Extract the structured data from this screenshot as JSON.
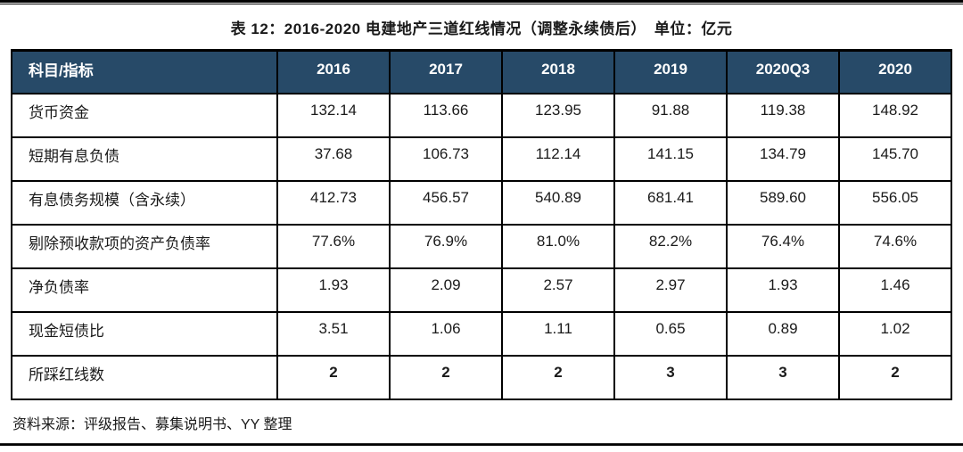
{
  "title": "表 12：2016-2020 电建地产三道红线情况（调整永续债后）　单位：亿元",
  "source_note": "资料来源：评级报告、募集说明书、YY 整理",
  "colors": {
    "header_bg": "#274A68",
    "header_text": "#FFFFFF",
    "pink": "#E5AEAF",
    "green": "#DDE6C5",
    "orange": "#E8730D",
    "red": "#FE0000",
    "plain": "#FFFFFF",
    "border": "#000000",
    "text": "#1A1A1A"
  },
  "table": {
    "columns": [
      "科目/指标",
      "2016",
      "2017",
      "2018",
      "2019",
      "2020Q3",
      "2020"
    ],
    "rows": [
      {
        "label": "货币资金",
        "values": [
          "132.14",
          "113.66",
          "123.95",
          "91.88",
          "119.38",
          "148.92"
        ],
        "styles": [
          "plain",
          "plain",
          "plain",
          "plain",
          "plain",
          "plain"
        ]
      },
      {
        "label": "短期有息负债",
        "values": [
          "37.68",
          "106.73",
          "112.14",
          "141.15",
          "134.79",
          "145.70"
        ],
        "styles": [
          "plain",
          "plain",
          "plain",
          "plain",
          "plain",
          "plain"
        ]
      },
      {
        "label": "有息债务规模（含永续）",
        "values": [
          "412.73",
          "456.57",
          "540.89",
          "681.41",
          "589.60",
          "556.05"
        ],
        "styles": [
          "plain",
          "plain",
          "plain",
          "plain",
          "plain",
          "plain"
        ]
      },
      {
        "label": "剔除预收款项的资产负债率",
        "values": [
          "77.6%",
          "76.9%",
          "81.0%",
          "82.2%",
          "76.4%",
          "74.6%"
        ],
        "styles": [
          "pink",
          "pink",
          "pink",
          "pink",
          "pink",
          "pink"
        ]
      },
      {
        "label": "净负债率",
        "values": [
          "1.93",
          "2.09",
          "2.57",
          "2.97",
          "1.93",
          "1.46"
        ],
        "styles": [
          "pink",
          "pink",
          "pink",
          "pink",
          "pink",
          "pink"
        ]
      },
      {
        "label": "现金短债比",
        "values": [
          "3.51",
          "1.06",
          "1.11",
          "0.65",
          "0.89",
          "1.02"
        ],
        "styles": [
          "green",
          "green",
          "green",
          "pink",
          "pink",
          "green"
        ]
      },
      {
        "label": "所踩红线数",
        "values": [
          "2",
          "2",
          "2",
          "3",
          "3",
          "2"
        ],
        "styles": [
          "orange",
          "orange",
          "orange",
          "red",
          "red",
          "orange"
        ]
      }
    ]
  }
}
